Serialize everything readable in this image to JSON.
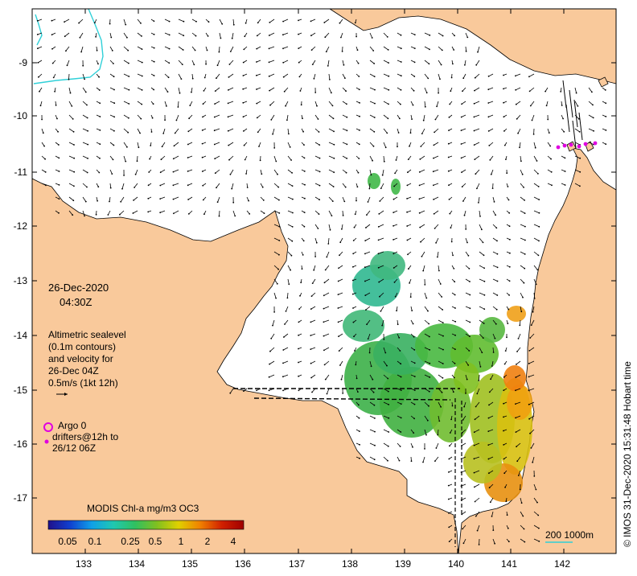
{
  "map": {
    "lon_ticks": [
      "133",
      "134",
      "135",
      "136",
      "137",
      "138",
      "139",
      "140",
      "141",
      "142"
    ],
    "lat_ticks": [
      "-9",
      "-10",
      "-11",
      "-12",
      "-13",
      "-14",
      "-15",
      "-16",
      "-17"
    ],
    "colors": {
      "land": "#f9c99b",
      "sea": "#ffffff",
      "coast": "#000000",
      "arrow": "#000000",
      "isobath": "#30d0d8",
      "argo": "#e000e0"
    }
  },
  "date": {
    "line1": "26-Dec-2020",
    "line2": "04:30Z"
  },
  "info": {
    "line1": "Altimetric sealevel",
    "line2": "(0.1m contours)",
    "line3": "and velocity for",
    "line4": "26-Dec 04Z",
    "line5": "0.5m/s (1kt 12h)"
  },
  "legend": {
    "argo": "Argo 0",
    "drifters_line1": "drifters@12h to",
    "drifters_line2": "26/12 06Z"
  },
  "colorbar": {
    "title": "MODIS Chl-a mg/m3 OC3",
    "ticks": [
      "0.05",
      "0.1",
      "0.25",
      "0.5",
      "1",
      "2",
      "4"
    ],
    "gradient": [
      "#20108a",
      "#1040d0",
      "#10a0e8",
      "#20c8b0",
      "#30c060",
      "#80c020",
      "#e0d000",
      "#f08000",
      "#d02000",
      "#a00000"
    ]
  },
  "scale": {
    "label": "200  1000m"
  },
  "credit": "© IMOS 31-Dec-2020 15:31:48 Hobart time"
}
